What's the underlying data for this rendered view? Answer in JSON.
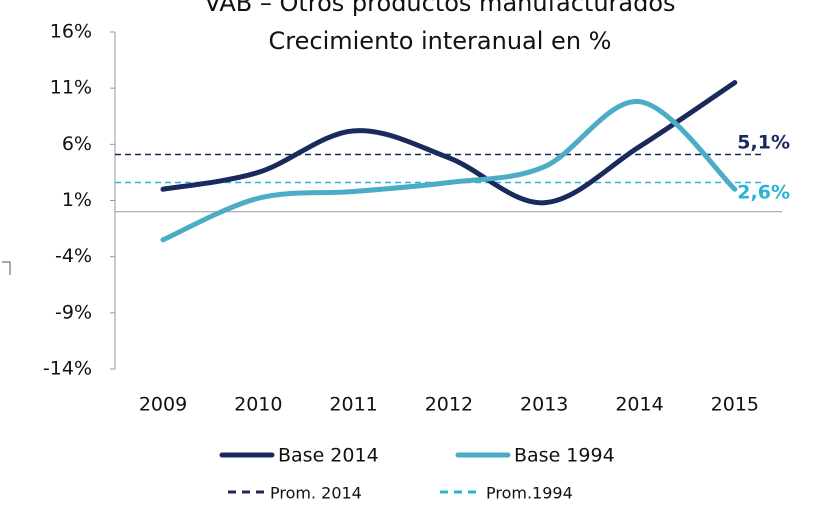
{
  "chart_data": {
    "type": "line",
    "title": "VAB – Otros productos manufacturados",
    "subtitle": "Crecimiento interanual en %",
    "categories": [
      "2009",
      "2010",
      "2011",
      "2012",
      "2013",
      "2014",
      "2015"
    ],
    "series": [
      {
        "name": "Base 2014",
        "color": "#1b2a5c",
        "values": [
          2.0,
          3.5,
          7.2,
          4.8,
          0.8,
          5.8,
          11.5
        ]
      },
      {
        "name": "Base 1994",
        "color": "#4bacc6",
        "values": [
          -2.5,
          1.2,
          1.8,
          2.6,
          4.0,
          9.8,
          2.0
        ]
      }
    ],
    "reference_lines": [
      {
        "name": "Prom. 2014",
        "value": 5.1,
        "label": "5,1%",
        "color": "#1b2a5c"
      },
      {
        "name": "Prom.1994",
        "value": 2.6,
        "label": "2,6%",
        "color": "#2bb3d6"
      }
    ],
    "ylim": [
      -14,
      16
    ],
    "yticks": [
      {
        "value": 16,
        "label": "16%"
      },
      {
        "value": 11,
        "label": "11%"
      },
      {
        "value": 6,
        "label": "6%"
      },
      {
        "value": 1,
        "label": "1%"
      },
      {
        "value": -4,
        "label": "-4%"
      },
      {
        "value": -9,
        "label": "-9%"
      },
      {
        "value": -14,
        "label": "-14%"
      }
    ]
  }
}
